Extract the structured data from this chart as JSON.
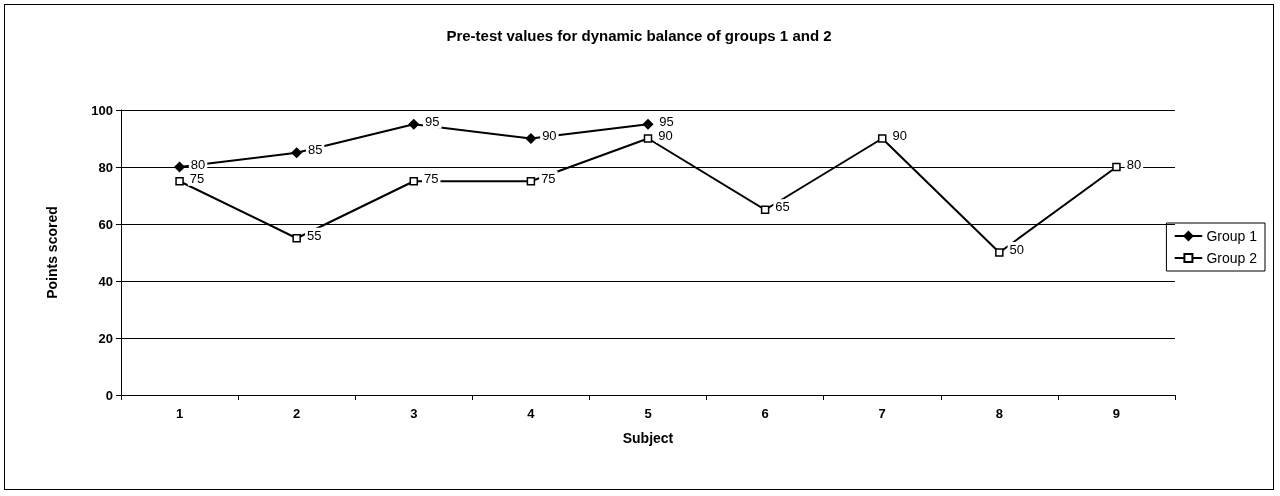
{
  "chart_data": {
    "type": "line",
    "title": "Pre-test values for dynamic balance of groups 1 and 2",
    "xlabel": "Subject",
    "ylabel": "Points scored",
    "categories": [
      "1",
      "2",
      "3",
      "4",
      "5",
      "6",
      "7",
      "8",
      "9"
    ],
    "series": [
      {
        "name": "Group 1",
        "color": "#000000",
        "marker": "diamond",
        "values": [
          80,
          85,
          95,
          90,
          95,
          null,
          null,
          null,
          null
        ]
      },
      {
        "name": "Group 2",
        "color": "#000000",
        "marker": "square",
        "values": [
          75,
          55,
          75,
          75,
          90,
          65,
          90,
          50,
          80
        ]
      }
    ],
    "ylim": [
      0,
      100
    ],
    "yticks": [
      0,
      20,
      40,
      60,
      80,
      100
    ],
    "grid": "y",
    "legend": "right",
    "data_labels": true,
    "line_style": "solid"
  }
}
